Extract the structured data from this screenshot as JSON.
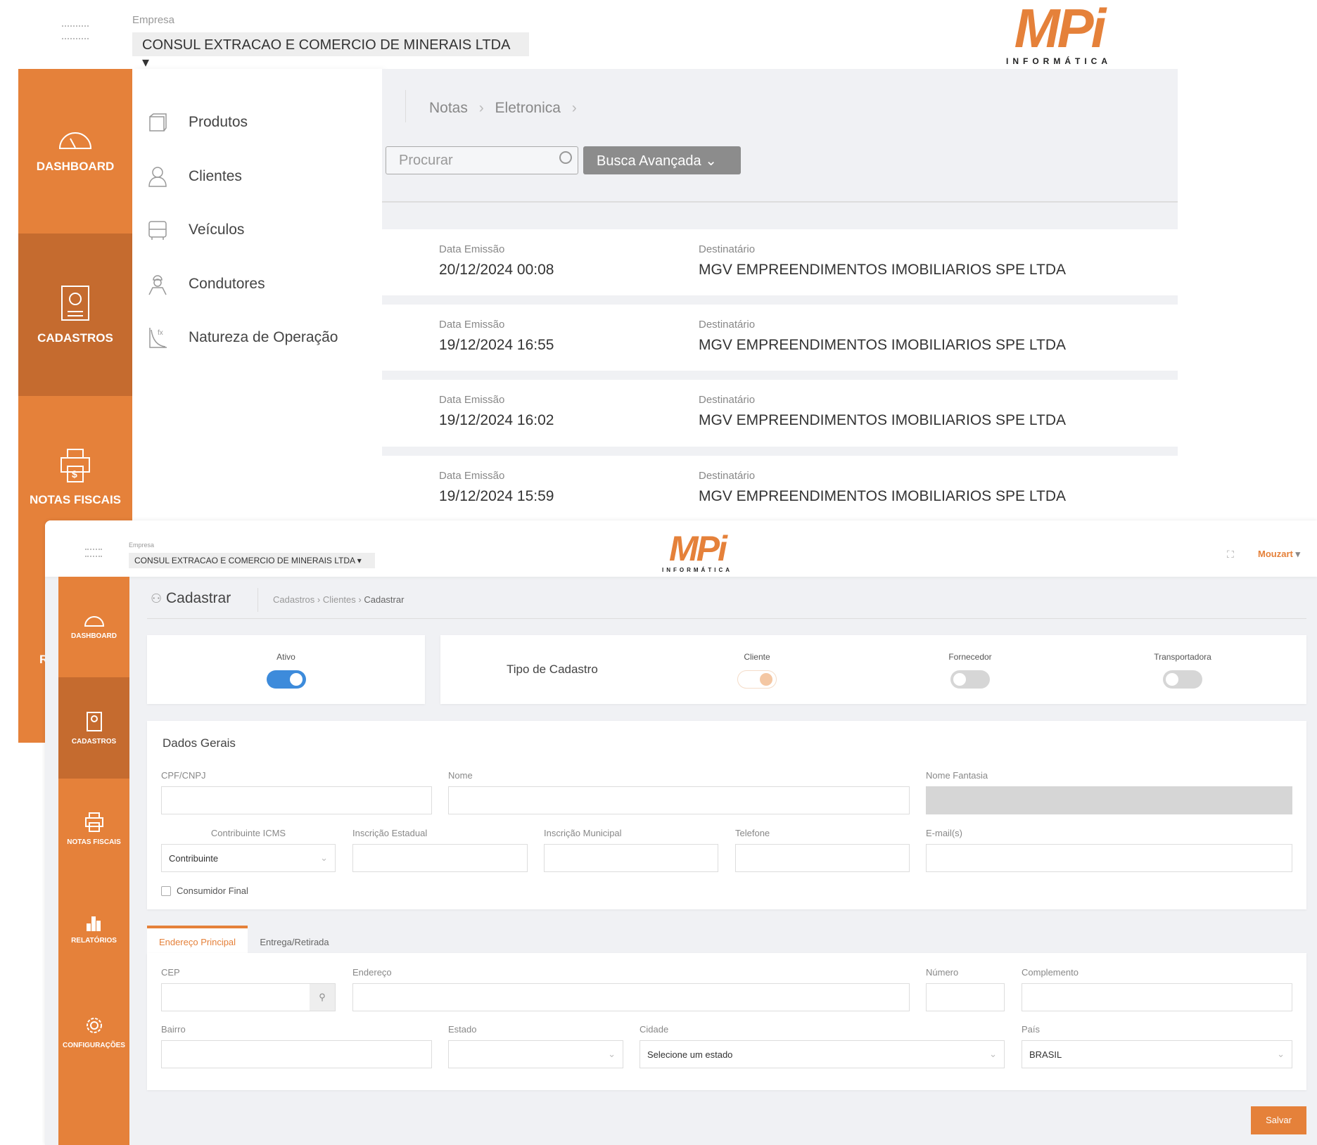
{
  "back_window": {
    "company_label": "Empresa",
    "company": "CONSUL EXTRACAO E COMERCIO DE MINERAIS LTDA",
    "logo": {
      "text": "MPi",
      "subtitle": "INFORMÁTICA"
    },
    "sidebar": [
      {
        "label": "DASHBOARD",
        "icon": "speedometer-icon"
      },
      {
        "label": "CADASTROS",
        "icon": "id-card-icon",
        "active": true
      },
      {
        "label": "NOTAS FISCAIS",
        "icon": "printer-dollar-icon"
      }
    ],
    "submenu": [
      {
        "label": "Produtos",
        "icon": "box-icon"
      },
      {
        "label": "Clientes",
        "icon": "user-icon"
      },
      {
        "label": "Veículos",
        "icon": "truck-icon"
      },
      {
        "label": "Condutores",
        "icon": "driver-icon"
      },
      {
        "label": "Natureza de Operação",
        "icon": "function-chart-icon"
      }
    ],
    "breadcrumb": [
      "Notas",
      "Eletronica"
    ],
    "search_placeholder": "Procurar",
    "advanced_search": "Busca Avançada",
    "rows": [
      {
        "date_label": "Data Emissão",
        "date": "20/12/2024 00:08",
        "dest_label": "Destinatário",
        "dest": "MGV EMPREENDIMENTOS IMOBILIARIOS SPE LTDA"
      },
      {
        "date_label": "Data Emissão",
        "date": "19/12/2024 16:55",
        "dest_label": "Destinatário",
        "dest": "MGV EMPREENDIMENTOS IMOBILIARIOS SPE LTDA"
      },
      {
        "date_label": "Data Emissão",
        "date": "19/12/2024 16:02",
        "dest_label": "Destinatário",
        "dest": "MGV EMPREENDIMENTOS IMOBILIARIOS SPE LTDA"
      },
      {
        "date_label": "Data Emissão",
        "date": "19/12/2024 15:59",
        "dest_label": "Destinatário",
        "dest": "MGV EMPREENDIMENTOS IMOBILIARIOS SPE LTDA"
      }
    ],
    "hidden_sidebar_fragment": "R"
  },
  "front_window": {
    "company_label": "Empresa",
    "company": "CONSUL EXTRACAO E COMERCIO DE MINERAIS LTDA",
    "user": "Mouzart",
    "sidebar": [
      {
        "label": "DASHBOARD"
      },
      {
        "label": "CADASTROS",
        "active": true
      },
      {
        "label": "NOTAS FISCAIS"
      },
      {
        "label": "RELATÓRIOS"
      },
      {
        "label": "CONFIGURAÇÕES"
      }
    ],
    "title": "Cadastrar",
    "breadcrumb": [
      "Cadastros",
      "Clientes",
      "Cadastrar"
    ],
    "ativo": {
      "label": "Ativo",
      "on": true
    },
    "tipo_label": "Tipo de Cadastro",
    "tipos": [
      {
        "label": "Cliente",
        "on": true
      },
      {
        "label": "Fornecedor",
        "on": false
      },
      {
        "label": "Transportadora",
        "on": false
      }
    ],
    "dados_title": "Dados Gerais",
    "fields": {
      "cpf": "CPF/CNPJ",
      "nome": "Nome",
      "fantasia": "Nome Fantasia",
      "icms": "Contribuinte ICMS",
      "icms_value": "Contribuinte",
      "ie": "Inscrição Estadual",
      "im": "Inscrição Municipal",
      "tel": "Telefone",
      "email": "E-mail(s)",
      "consumidor": "Consumidor Final"
    },
    "tabs": [
      "Endereço Principal",
      "Entrega/Retirada"
    ],
    "address": {
      "cep": "CEP",
      "endereco": "Endereço",
      "numero": "Número",
      "complemento": "Complemento",
      "bairro": "Bairro",
      "estado": "Estado",
      "cidade": "Cidade",
      "cidade_value": "Selecione um estado",
      "pais": "País",
      "pais_value": "BRASIL"
    },
    "save": "Salvar"
  },
  "colors": {
    "accent": "#E5813A",
    "accent_dark": "#C56B2F",
    "toggle_on": "#3D8BDB"
  }
}
